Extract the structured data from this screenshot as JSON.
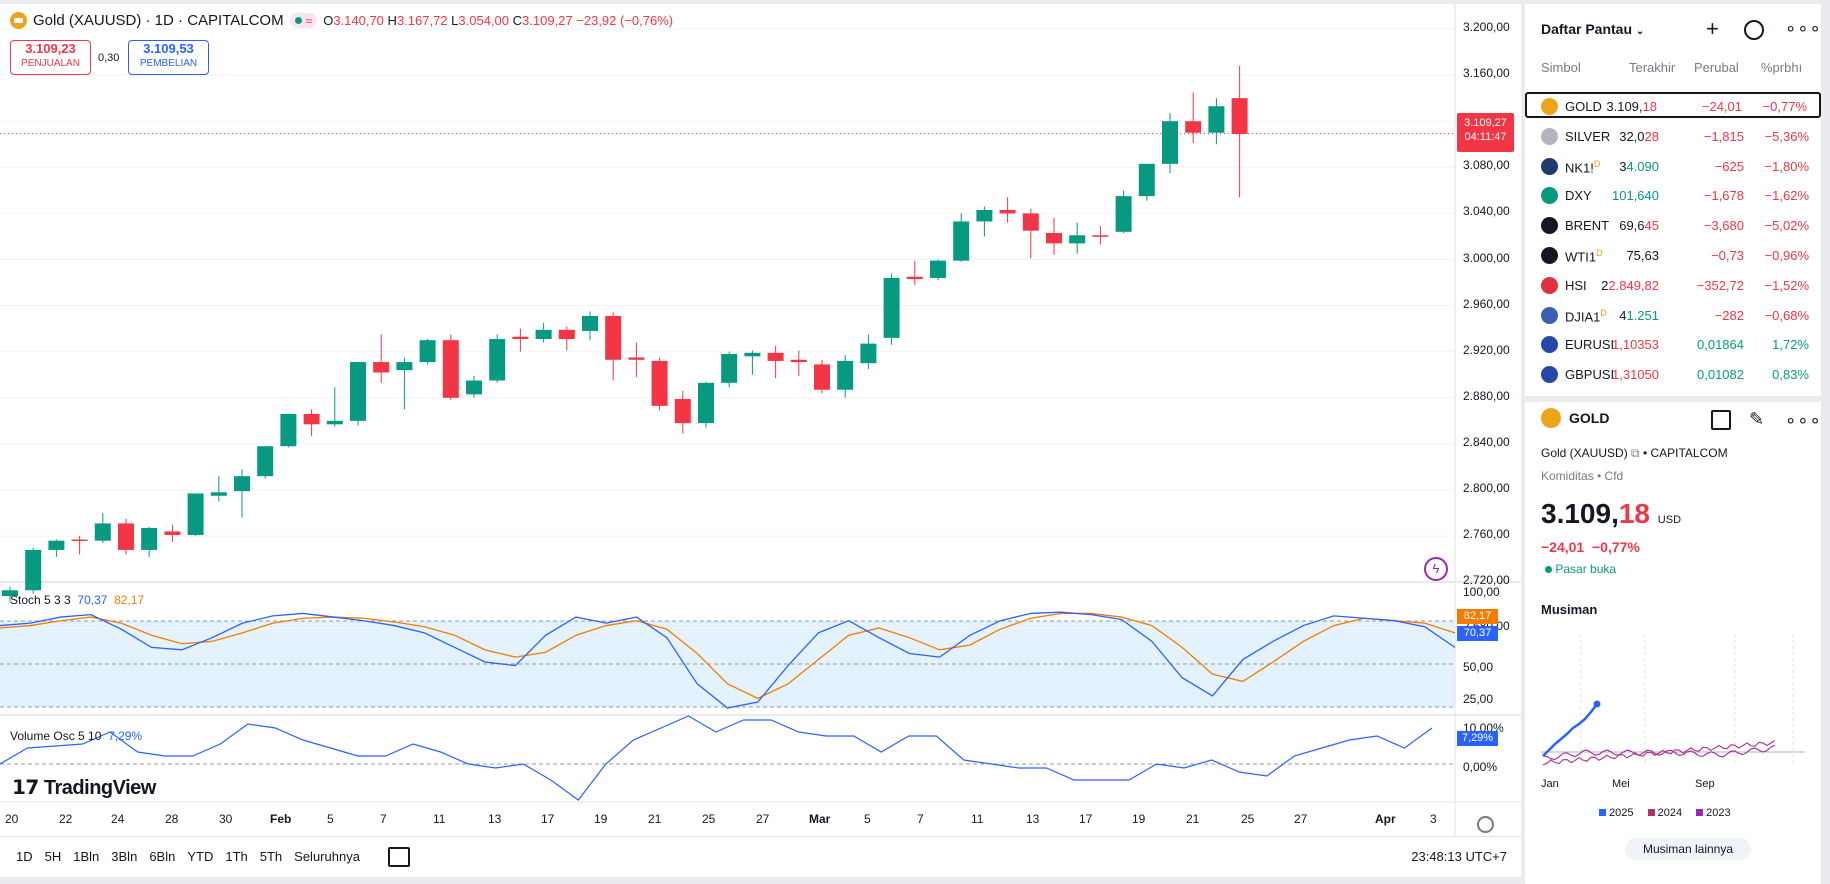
{
  "chart": {
    "symbol_title": "Gold (XAUUSD) · 1D · CAPITALCOM",
    "ohlc": {
      "o_label": "O",
      "o": "3.140,70",
      "h_label": "H",
      "h": "3.167,72",
      "l_label": "L",
      "l": "3.054,00",
      "c_label": "C",
      "c": "3.109,27",
      "change": "−23,92 (−0,76%)"
    },
    "sell": {
      "value": "3.109,23",
      "label": "PENJUALAN"
    },
    "spread": "0,30",
    "buy": {
      "value": "3.109,53",
      "label": "PEMBELIAN"
    },
    "price_axis": [
      "3.200,00",
      "3.160,00",
      "3.120,00",
      "3.080,00",
      "3.040,00",
      "3.000,00",
      "2.960,00",
      "2.920,00",
      "2.880,00",
      "2.840,00",
      "2.800,00",
      "2.760,00",
      "2.720,00",
      "2.680,00"
    ],
    "last_price_tag": "3.109,27",
    "countdown": "04:11:47",
    "x_axis": [
      "20",
      "22",
      "24",
      "28",
      "30",
      "Feb",
      "5",
      "7",
      "11",
      "13",
      "17",
      "19",
      "21",
      "25",
      "27",
      "Mar",
      "5",
      "7",
      "11",
      "13",
      "17",
      "19",
      "21",
      "25",
      "27",
      "Apr",
      "3"
    ],
    "stoch": {
      "label": "Stoch 5 3 3",
      "k": "70,37",
      "d": "82,17",
      "axis": [
        "100,00",
        "50,00",
        "25,00"
      ],
      "tag_d": "82,17",
      "tag_k": "70,37"
    },
    "volosc": {
      "label": "Volume Osc 5 10",
      "value": "7,29%",
      "axis": [
        "10,00%",
        "0,00%"
      ],
      "tag": "7,29%"
    },
    "brand": "TradingView",
    "colors": {
      "up": "#089981",
      "down": "#f23645",
      "stoch_k": "#2962ff",
      "stoch_d": "#f57c00"
    }
  },
  "bottombar": {
    "timeframes": [
      "1D",
      "5H",
      "1Bln",
      "3Bln",
      "6Bln",
      "YTD",
      "1Th",
      "5Th",
      "Seluruhnya"
    ],
    "clock": "23:48:13 UTC+7"
  },
  "watchlist": {
    "title": "Daftar Pantau",
    "columns": [
      "Simbol",
      "Terakhir",
      "Perubal",
      "%prbhı"
    ],
    "rows": [
      {
        "sym": "GOLD",
        "last_a": "3.109,",
        "last_b": "18",
        "chg": "−24,01",
        "pct": "−0,77%",
        "icon": "gold-icon",
        "color": "#f0a21b",
        "dir": "down"
      },
      {
        "sym": "SILVER",
        "last_a": "32,0",
        "last_b": "28",
        "chg": "−1,815",
        "pct": "−5,36%",
        "icon": "silver-icon",
        "color": "#b2b5be",
        "dir": "down"
      },
      {
        "sym": "NK1!",
        "sup": "D",
        "last_a": "3",
        "last_b": "4.090",
        "chg": "−625",
        "pct": "−1,80%",
        "icon": "nikkei-icon",
        "color": "#1e3a6e",
        "dir": "down",
        "last_green": true
      },
      {
        "sym": "DXY",
        "last_a": "101,640",
        "last_b": "",
        "chg": "−1,678",
        "pct": "−1,62%",
        "icon": "dollar-icon",
        "color": "#089981",
        "dir": "down",
        "last_all_green": true
      },
      {
        "sym": "BRENT",
        "last_a": "69,6",
        "last_b": "45",
        "chg": "−3,680",
        "pct": "−5,02%",
        "icon": "oil-drop-icon",
        "color": "#131722",
        "dir": "down"
      },
      {
        "sym": "WTI1",
        "sup": "D",
        "last_a": "75,63",
        "last_b": "",
        "chg": "−0,73",
        "pct": "−0,96%",
        "icon": "oil-drop-icon",
        "color": "#131722",
        "dir": "down",
        "last_plain": true
      },
      {
        "sym": "HSI",
        "last_a": "2",
        "last_b": "2.849,82",
        "chg": "−352,72",
        "pct": "−1,52%",
        "icon": "hsi-icon",
        "color": "#e0313f",
        "dir": "down"
      },
      {
        "sym": "DJIA1",
        "sup": "D",
        "last_a": "4",
        "last_b": "1.251",
        "chg": "−282",
        "pct": "−0,68%",
        "icon": "us-flag-icon",
        "color": "#3a5fb0",
        "dir": "down",
        "last_green": true
      },
      {
        "sym": "EURUSI",
        "last_a": "1,1035",
        "last_b": "3",
        "chg": "0,01864",
        "pct": "1,72%",
        "icon": "euro-icon",
        "color": "#2448a8",
        "dir": "up",
        "last_red": true
      },
      {
        "sym": "GBPUSI",
        "last_a": "1,3105",
        "last_b": "0",
        "chg": "0,01082",
        "pct": "0,83%",
        "icon": "uk-flag-icon",
        "color": "#2448a8",
        "dir": "up",
        "last_red": true
      }
    ]
  },
  "detail": {
    "symbol": "GOLD",
    "name": "Gold (XAUUSD)",
    "exchange": "CAPITALCOM",
    "category": "Komiditas • Cfd",
    "price_a": "3.109,",
    "price_b": "18",
    "currency": "USD",
    "change": "−24,01",
    "change_pct": "−0,77%",
    "market_status": "Pasar buka",
    "seasonal_title": "Musiman",
    "seasonal_x": [
      "Jan",
      "Mei",
      "Sep"
    ],
    "seasonal_legend": [
      {
        "year": "2025",
        "color": "#2962ff"
      },
      {
        "year": "2024",
        "color": "#b0306a"
      },
      {
        "year": "2023",
        "color": "#9c27b0"
      }
    ],
    "more_button": "Musiman lainnya"
  }
}
